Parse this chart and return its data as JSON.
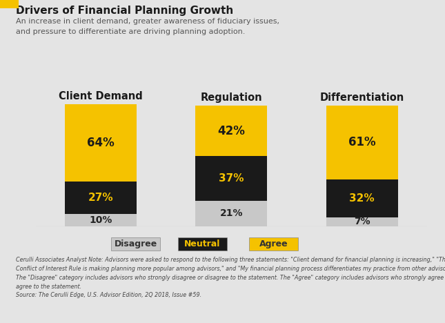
{
  "title": "Drivers of Financial Planning Growth",
  "subtitle": "An increase in client demand, greater awareness of fiduciary issues,\nand pressure to differentiate are driving planning adoption.",
  "categories": [
    "Client Demand",
    "Regulation",
    "Differentiation"
  ],
  "disagree": [
    10,
    21,
    7
  ],
  "neutral": [
    27,
    37,
    32
  ],
  "agree": [
    64,
    42,
    61
  ],
  "color_disagree": "#c8c8c8",
  "color_neutral": "#1a1a1a",
  "color_agree": "#f5c200",
  "color_bg": "#e4e4e4",
  "color_title": "#1a1a1a",
  "color_subtitle": "#555555",
  "note_text": "Cerulli Associates Analyst Note: Advisors were asked to respond to the following three statements: \"Client demand for financial planning is increasing,\" \"The DOL\nConflict of Interest Rule is making planning more popular among advisors,\" and \"My financial planning process differentiates my practice from other advisors.\"\nThe \"Disagree\" category includes advisors who strongly disagree or disagree to the statement. The \"Agree\" category includes advisors who strongly agree or\nagree to the statement.\nSource: The Cerulli Edge, U.S. Advisor Edition, 2Q 2018, Issue #59.",
  "accent_color": "#f5c200",
  "legend_labels": [
    "Disagree",
    "Neutral",
    "Agree"
  ],
  "legend_colors": [
    "#c8c8c8",
    "#1a1a1a",
    "#f5c200"
  ],
  "legend_text_colors": [
    "#333333",
    "#f5c200",
    "#333333"
  ]
}
